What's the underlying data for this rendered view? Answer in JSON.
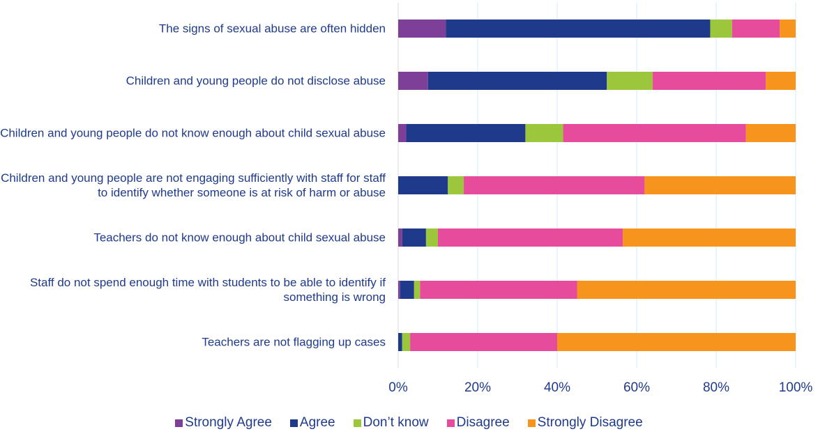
{
  "chart_data": {
    "type": "stacked_bar_horizontal",
    "categories": [
      "The signs of sexual abuse are often hidden",
      "Children and young people do not disclose abuse",
      "Children and young people do not know enough about child sexual abuse",
      "Children and young people are not engaging sufficiently with staff for staff to identify whether someone is at risk of harm or abuse",
      "Teachers do not know enough about child sexual abuse",
      "Staff do not spend enough time with students to be able to identify if something is wrong",
      "Teachers are not flagging up cases"
    ],
    "series": [
      {
        "name": "Strongly Agree",
        "color": "#7e3f98",
        "values": [
          12,
          7.5,
          2,
          0,
          1,
          0.5,
          0
        ]
      },
      {
        "name": "Agree",
        "color": "#1f3a8a",
        "values": [
          66.5,
          45,
          30,
          12.5,
          6,
          3.5,
          1
        ]
      },
      {
        "name": "Don’t know",
        "color": "#9cc63b",
        "values": [
          5.5,
          11.5,
          9.5,
          4,
          3,
          1.5,
          2
        ]
      },
      {
        "name": "Disagree",
        "color": "#e64c9b",
        "values": [
          12,
          28.5,
          46,
          45.5,
          46.5,
          39.5,
          37
        ]
      },
      {
        "name": "Strongly Disagree",
        "color": "#f7941d",
        "values": [
          4,
          7.5,
          12.5,
          38,
          43.5,
          55,
          60
        ]
      }
    ],
    "xlim": [
      0,
      100
    ],
    "xticks": [
      {
        "value": 0,
        "label": "0%"
      },
      {
        "value": 20,
        "label": "20%"
      },
      {
        "value": 40,
        "label": "40%"
      },
      {
        "value": 60,
        "label": "60%"
      },
      {
        "value": 80,
        "label": "80%"
      },
      {
        "value": 100,
        "label": "100%"
      }
    ],
    "grid": true
  }
}
